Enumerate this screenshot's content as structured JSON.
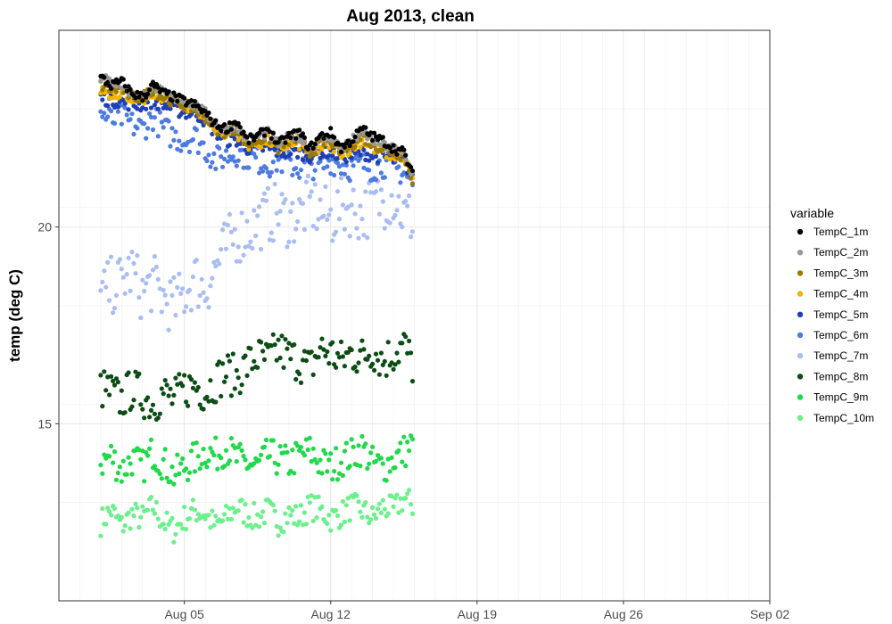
{
  "chart_data": {
    "type": "scatter",
    "title": "Aug 2013, clean",
    "xlabel": "",
    "ylabel": "temp (deg C)",
    "x_tick_labels": [
      "Aug 05",
      "Aug 12",
      "Aug 19",
      "Aug 26",
      "Sep 02"
    ],
    "x_tick_dates": [
      "2013-08-05",
      "2013-08-12",
      "2013-08-19",
      "2013-08-26",
      "2013-09-02"
    ],
    "xlim": [
      "2013-07-30",
      "2013-09-02"
    ],
    "y_ticks": [
      15,
      20
    ],
    "ylim": [
      10.5,
      25
    ],
    "grid": true,
    "legend_title": "variable",
    "legend_position": "right",
    "series": [
      {
        "name": "TempC_1m",
        "color": "#000000",
        "x_start": "2013-08-01",
        "x_end": "2013-08-16",
        "values": [
          23.8,
          23.6,
          23.7,
          23.4,
          23.3,
          23.6,
          23.4,
          23.3,
          23.2,
          23.1,
          22.9,
          22.6,
          22.5,
          22.7,
          22.2,
          22.3,
          22.5,
          22.1,
          22.3,
          22.4,
          22.0,
          22.3,
          22.4,
          22.0,
          22.2,
          22.5,
          22.3,
          22.2,
          22.0,
          21.9,
          21.2
        ]
      },
      {
        "name": "TempC_2m",
        "color": "#999999",
        "x_start": "2013-08-01",
        "x_end": "2013-08-16",
        "values": [
          23.8,
          23.7,
          23.6,
          23.4,
          23.3,
          23.6,
          23.4,
          23.3,
          23.2,
          23.1,
          22.9,
          22.6,
          22.5,
          22.6,
          22.2,
          22.3,
          22.4,
          22.1,
          22.3,
          22.3,
          22.0,
          22.2,
          22.3,
          22.0,
          22.2,
          22.4,
          22.2,
          22.1,
          22.0,
          21.9,
          21.2
        ]
      },
      {
        "name": "TempC_3m",
        "color": "#9C7A00",
        "x_start": "2013-08-01",
        "x_end": "2013-08-16",
        "values": [
          23.6,
          23.5,
          23.5,
          23.3,
          23.3,
          23.5,
          23.3,
          23.2,
          23.1,
          23.0,
          22.8,
          22.5,
          22.4,
          22.5,
          22.1,
          22.2,
          22.3,
          22.0,
          22.2,
          22.2,
          21.9,
          22.1,
          22.2,
          21.9,
          22.1,
          22.3,
          22.1,
          22.0,
          21.9,
          21.8,
          21.1
        ]
      },
      {
        "name": "TempC_4m",
        "color": "#F4B400",
        "x_start": "2013-08-01",
        "x_end": "2013-08-16",
        "values": [
          23.5,
          23.4,
          23.4,
          23.3,
          23.2,
          23.4,
          23.3,
          23.2,
          23.1,
          23.0,
          22.8,
          22.5,
          22.4,
          22.4,
          22.1,
          22.1,
          22.2,
          22.0,
          22.1,
          22.1,
          21.9,
          22.0,
          22.1,
          21.9,
          22.0,
          22.2,
          22.0,
          21.9,
          21.8,
          21.8,
          21.1
        ]
      },
      {
        "name": "TempC_5m",
        "color": "#1F3FB3",
        "x_start": "2013-08-01",
        "x_end": "2013-08-16",
        "values": [
          23.3,
          23.2,
          23.2,
          23.1,
          23.1,
          23.2,
          23.1,
          23.0,
          22.9,
          22.9,
          22.7,
          22.4,
          22.2,
          22.2,
          22.0,
          22.0,
          22.0,
          21.9,
          21.9,
          21.9,
          21.8,
          21.9,
          21.9,
          21.8,
          21.8,
          21.9,
          21.8,
          21.8,
          21.7,
          21.7,
          21.1
        ]
      },
      {
        "name": "TempC_6m",
        "color": "#4F7BE0",
        "x_start": "2013-08-01",
        "x_end": "2013-08-16",
        "values": [
          22.9,
          22.7,
          22.8,
          22.6,
          22.5,
          22.8,
          22.5,
          22.3,
          22.2,
          22.3,
          22.0,
          21.7,
          21.8,
          21.9,
          21.8,
          21.7,
          21.6,
          21.7,
          21.6,
          21.5,
          21.6,
          21.5,
          21.7,
          21.6,
          21.5,
          21.6,
          21.5,
          21.6,
          21.5,
          21.4,
          21.0
        ]
      },
      {
        "name": "TempC_7m",
        "color": "#A9BDF2",
        "x_start": "2013-08-01",
        "x_end": "2013-08-16",
        "values": [
          18.2,
          18.5,
          18.6,
          18.9,
          18.3,
          18.6,
          18.2,
          18.0,
          18.3,
          18.7,
          18.4,
          19.0,
          19.5,
          19.8,
          19.9,
          20.1,
          20.3,
          20.4,
          20.2,
          20.3,
          20.6,
          20.4,
          20.2,
          20.5,
          20.5,
          20.3,
          20.6,
          20.7,
          20.8,
          20.3,
          20.2
        ]
      },
      {
        "name": "TempC_8m",
        "color": "#0B4D15",
        "x_start": "2013-08-01",
        "x_end": "2013-08-16",
        "values": [
          15.9,
          15.8,
          15.6,
          15.9,
          15.7,
          15.5,
          15.8,
          15.6,
          15.9,
          16.0,
          15.8,
          16.1,
          16.3,
          16.2,
          16.5,
          16.7,
          16.6,
          16.9,
          16.7,
          16.6,
          16.4,
          16.9,
          16.8,
          16.6,
          16.8,
          16.7,
          16.9,
          16.6,
          16.8,
          17.0,
          16.4
        ]
      },
      {
        "name": "TempC_9m",
        "color": "#1FD94A",
        "x_start": "2013-08-01",
        "x_end": "2013-08-16",
        "values": [
          14.0,
          14.2,
          13.8,
          14.1,
          13.9,
          14.3,
          14.0,
          13.7,
          13.9,
          14.1,
          14.3,
          14.2,
          14.4,
          14.1,
          14.0,
          13.9,
          14.2,
          14.1,
          14.0,
          14.2,
          14.3,
          14.0,
          13.9,
          14.1,
          14.2,
          14.4,
          14.0,
          13.9,
          14.1,
          14.3,
          14.5
        ]
      },
      {
        "name": "TempC_10m",
        "color": "#6BF08C",
        "x_start": "2013-08-01",
        "x_end": "2013-08-16",
        "values": [
          12.5,
          12.8,
          12.4,
          12.7,
          12.6,
          12.9,
          12.5,
          12.3,
          12.6,
          12.8,
          12.7,
          12.4,
          12.6,
          12.9,
          12.7,
          12.6,
          12.8,
          12.5,
          12.7,
          12.6,
          12.9,
          12.8,
          12.6,
          12.7,
          12.9,
          12.8,
          12.6,
          12.9,
          12.8,
          13.1,
          12.9
        ]
      }
    ]
  }
}
